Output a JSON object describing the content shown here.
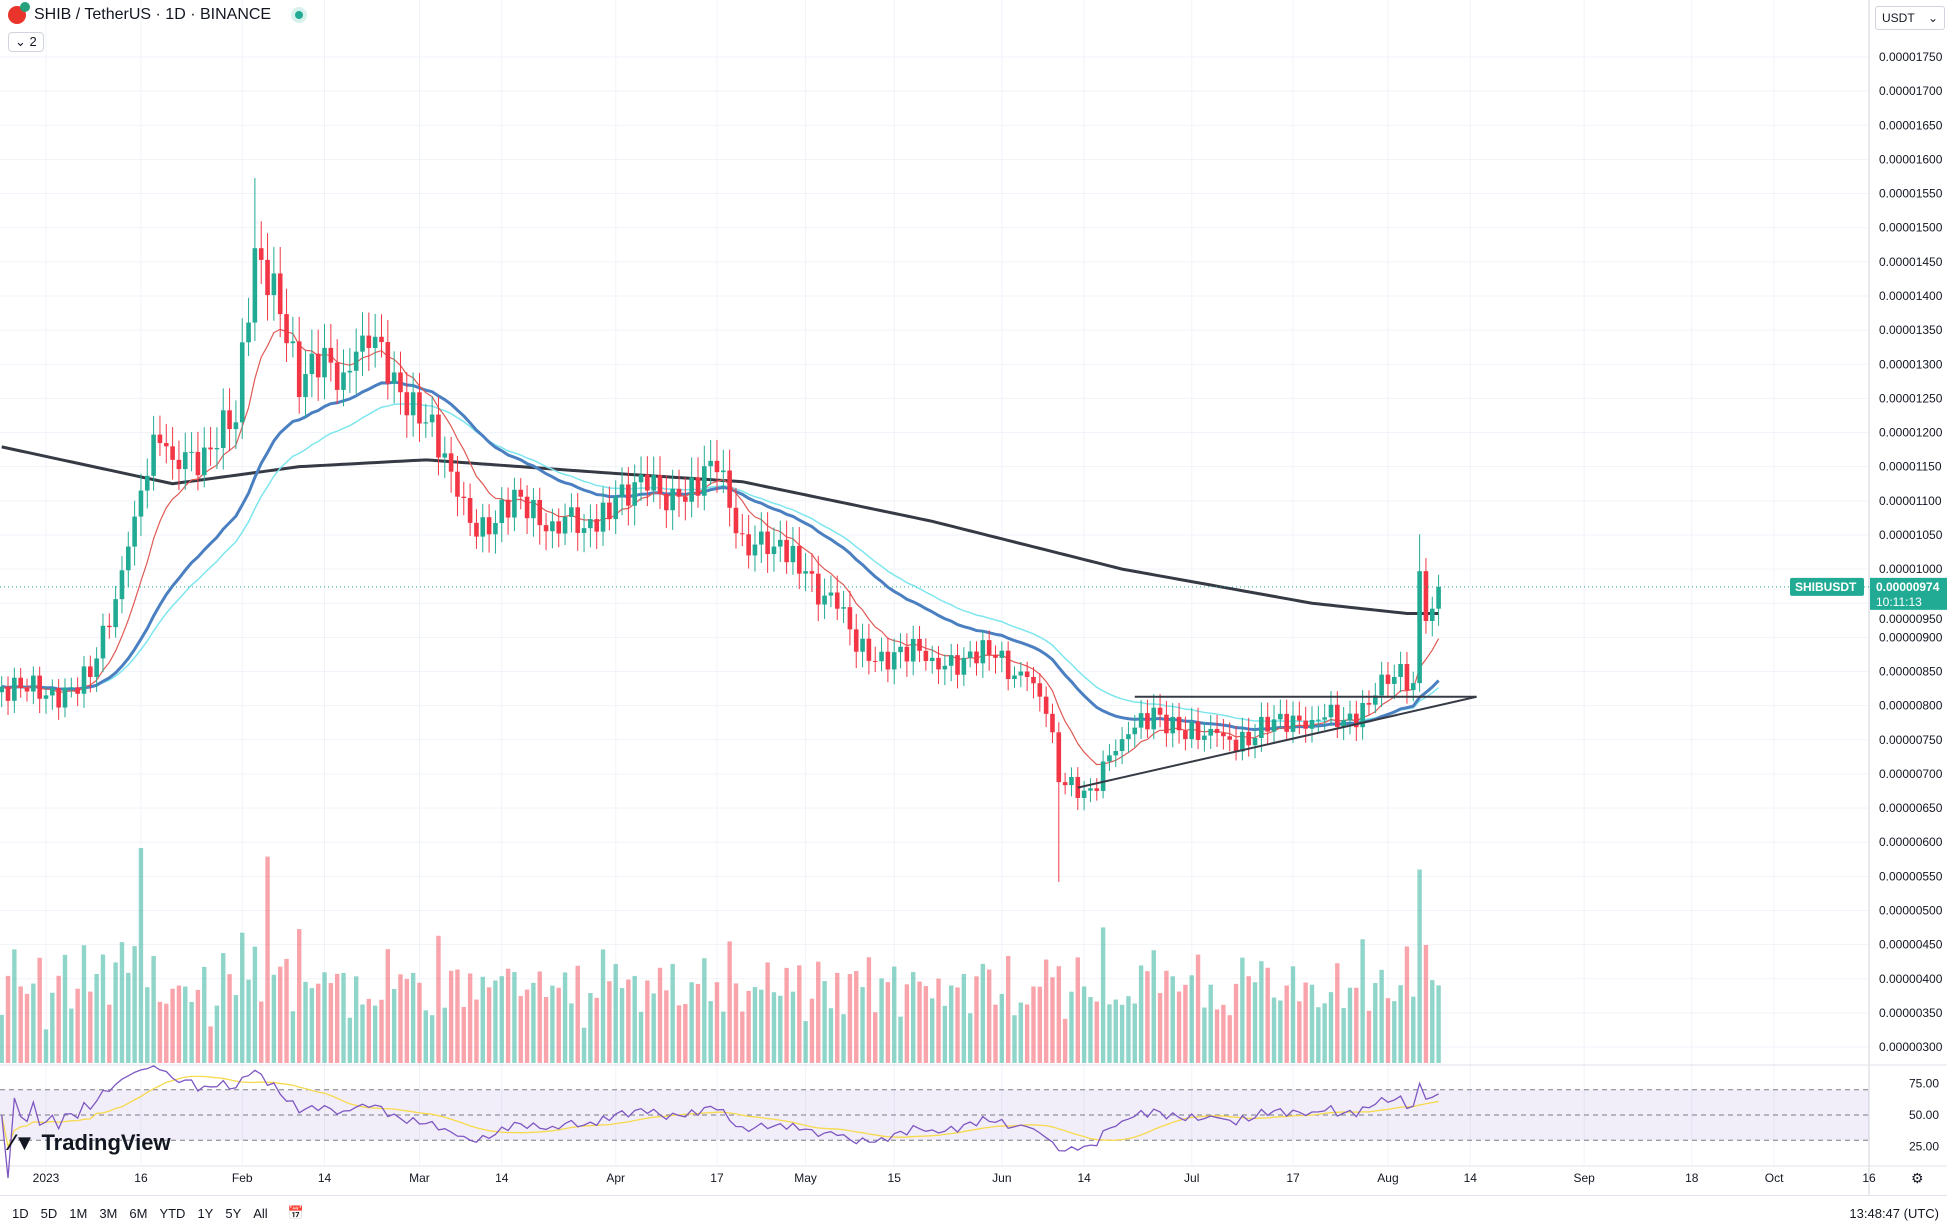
{
  "header": {
    "symbol": "SHIB / TetherUS · 1D · BINANCE",
    "indicator_count": "2",
    "currency": "USDT"
  },
  "price_tag": {
    "symbol": "SHIBUSDT",
    "price": "0.00000974",
    "countdown": "10:11:13"
  },
  "branding": "TradingView",
  "toolbar": {
    "ranges": [
      "1D",
      "5D",
      "1M",
      "3M",
      "6M",
      "YTD",
      "1Y",
      "5Y",
      "All"
    ],
    "clock": "13:48:47 (UTC)"
  },
  "chart_data": {
    "type": "candlestick",
    "title": "SHIB / TetherUS · 1D · BINANCE",
    "price_unit": "1e-8 USDT",
    "y_ticks": [
      "0.00001750",
      "0.00001700",
      "0.00001650",
      "0.00001600",
      "0.00001550",
      "0.00001500",
      "0.00001450",
      "0.00001400",
      "0.00001350",
      "0.00001300",
      "0.00001250",
      "0.00001200",
      "0.00001150",
      "0.00001100",
      "0.00001050",
      "0.00001000",
      "0.00000950",
      "0.00000900",
      "0.00000850",
      "0.00000800",
      "0.00000750",
      "0.00000700",
      "0.00000650",
      "0.00000600",
      "0.00000550",
      "0.00000500",
      "0.00000450",
      "0.00000400",
      "0.00000350",
      "0.00000300"
    ],
    "ylim": [
      300,
      1750
    ],
    "x_ticks": [
      {
        "day": 0,
        "label": "2023"
      },
      {
        "day": 15,
        "label": "16"
      },
      {
        "day": 31,
        "label": "Feb"
      },
      {
        "day": 44,
        "label": "14"
      },
      {
        "day": 59,
        "label": "Mar"
      },
      {
        "day": 72,
        "label": "14"
      },
      {
        "day": 90,
        "label": "Apr"
      },
      {
        "day": 106,
        "label": "17"
      },
      {
        "day": 120,
        "label": "May"
      },
      {
        "day": 134,
        "label": "15"
      },
      {
        "day": 151,
        "label": "Jun"
      },
      {
        "day": 164,
        "label": "14"
      },
      {
        "day": 181,
        "label": "Jul"
      },
      {
        "day": 197,
        "label": "17"
      },
      {
        "day": 212,
        "label": "Aug"
      },
      {
        "day": 225,
        "label": "14"
      },
      {
        "day": 243,
        "label": "Sep"
      },
      {
        "day": 260,
        "label": "18"
      },
      {
        "day": 273,
        "label": "Oct"
      },
      {
        "day": 288,
        "label": "16"
      }
    ],
    "close_anchors": [
      [
        -7,
        828
      ],
      [
        0,
        815
      ],
      [
        7,
        842
      ],
      [
        10,
        915
      ],
      [
        13,
        1033
      ],
      [
        15,
        1115
      ],
      [
        17,
        1197
      ],
      [
        20,
        1160
      ],
      [
        25,
        1178
      ],
      [
        30,
        1215
      ],
      [
        33,
        1470
      ],
      [
        36,
        1433
      ],
      [
        40,
        1252
      ],
      [
        44,
        1324
      ],
      [
        47,
        1288
      ],
      [
        50,
        1342
      ],
      [
        55,
        1288
      ],
      [
        60,
        1215
      ],
      [
        65,
        1106
      ],
      [
        70,
        1051
      ],
      [
        75,
        1106
      ],
      [
        80,
        1070
      ],
      [
        85,
        1060
      ],
      [
        90,
        1106
      ],
      [
        95,
        1115
      ],
      [
        100,
        1106
      ],
      [
        106,
        1142
      ],
      [
        110,
        1051
      ],
      [
        115,
        1033
      ],
      [
        120,
        997
      ],
      [
        125,
        942
      ],
      [
        128,
        879
      ],
      [
        132,
        879
      ],
      [
        140,
        870
      ],
      [
        145,
        870
      ],
      [
        150,
        870
      ],
      [
        155,
        842
      ],
      [
        158,
        788
      ],
      [
        160,
        688
      ],
      [
        165,
        679
      ],
      [
        170,
        751
      ],
      [
        175,
        797
      ],
      [
        180,
        751
      ],
      [
        185,
        760
      ],
      [
        190,
        742
      ],
      [
        195,
        788
      ],
      [
        200,
        779
      ],
      [
        205,
        779
      ],
      [
        210,
        815
      ],
      [
        213,
        842
      ],
      [
        216,
        833
      ],
      [
        217,
        997
      ],
      [
        218,
        924
      ],
      [
        219,
        942
      ],
      [
        220,
        974
      ]
    ],
    "wick_extremes": [
      {
        "day": 33,
        "high": 1573
      },
      {
        "day": 160,
        "low": 542
      },
      {
        "day": 217,
        "high": 1051
      }
    ],
    "ma200_anchors": [
      [
        -7,
        1179
      ],
      [
        20,
        1125
      ],
      [
        40,
        1150
      ],
      [
        60,
        1160
      ],
      [
        90,
        1140
      ],
      [
        110,
        1128
      ],
      [
        140,
        1070
      ],
      [
        170,
        1000
      ],
      [
        200,
        950
      ],
      [
        215,
        935
      ],
      [
        220,
        935
      ]
    ],
    "volume_spikes": [
      {
        "day": 15,
        "value": 1.0
      },
      {
        "day": 35,
        "value": 0.96
      },
      {
        "day": 160,
        "value": 0.45
      },
      {
        "day": 217,
        "value": 0.9
      }
    ],
    "trendlines": [
      {
        "type": "horizontal",
        "from_day": 172,
        "to_day": 226,
        "price": 813
      },
      {
        "type": "ascending",
        "from_day": 163,
        "from_price": 680,
        "to_day": 226,
        "to_price": 813
      }
    ],
    "rsi": {
      "levels": [
        "75.00",
        "50.00",
        "25.00"
      ],
      "upper": 70,
      "lower": 30
    }
  }
}
